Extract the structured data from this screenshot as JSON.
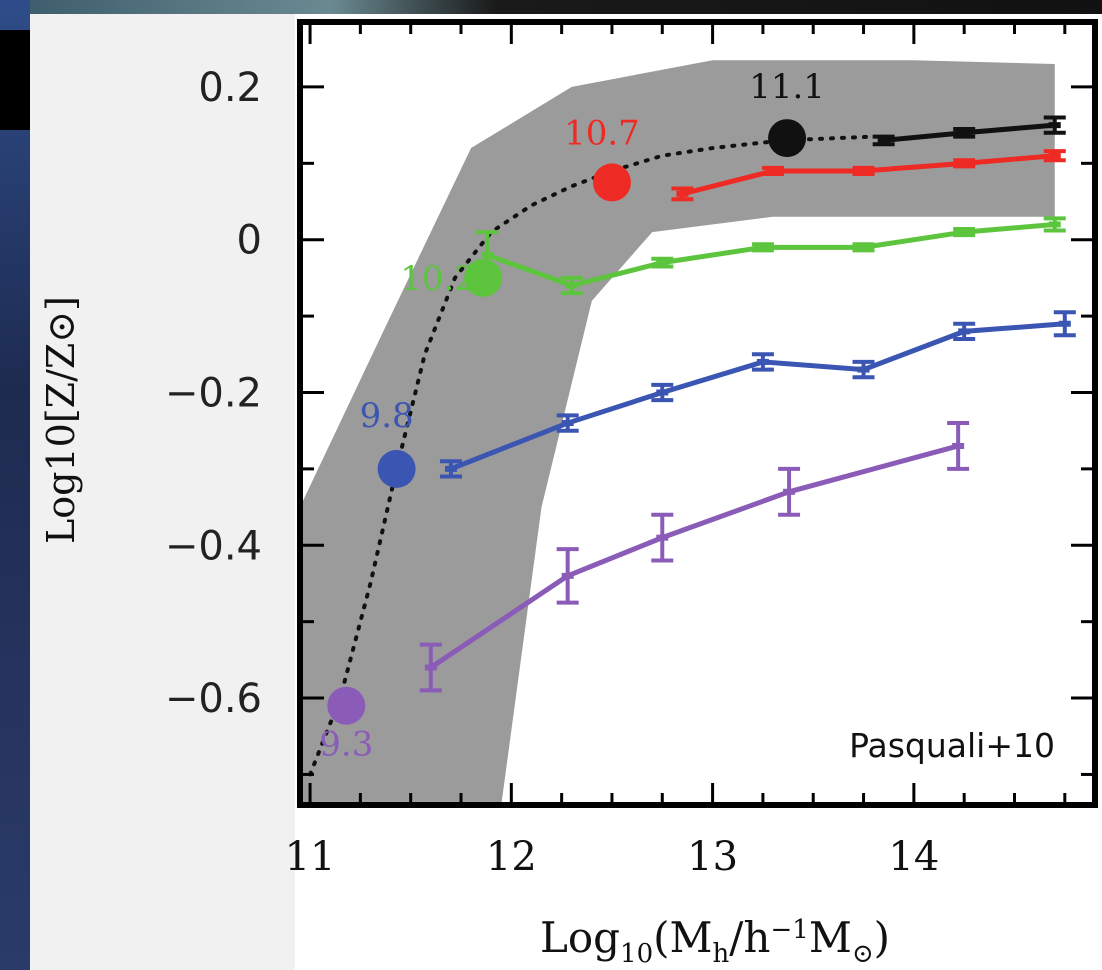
{
  "chart_data": {
    "type": "line",
    "xlabel_parts": {
      "pre": "Log",
      "sub": "10",
      "mid": "(M",
      "sub2": "h",
      "mid2": "/h",
      "sup": "−1",
      "mid3": "M",
      "sun": "⊙",
      "post": ")"
    },
    "ylabel": "Log10[Z/Z⊙]",
    "x_ticks": [
      "11",
      "12",
      "13",
      "14"
    ],
    "y_ticks": [
      "0.2",
      "0",
      "−0.2",
      "−0.4",
      "−0.6"
    ],
    "xlim": [
      10.95,
      14.9
    ],
    "ylim": [
      -0.74,
      0.285
    ],
    "annotation": "Pasquali+10",
    "shaded_band": {
      "upper": [
        [
          10.95,
          -0.35
        ],
        [
          11.4,
          -0.1
        ],
        [
          11.8,
          0.12
        ],
        [
          12.3,
          0.2
        ],
        [
          13.0,
          0.235
        ],
        [
          14.0,
          0.235
        ],
        [
          14.7,
          0.23
        ]
      ],
      "lower": [
        [
          11.95,
          -0.74
        ],
        [
          12.15,
          -0.35
        ],
        [
          12.4,
          -0.08
        ],
        [
          12.7,
          0.01
        ],
        [
          13.3,
          0.03
        ],
        [
          14.7,
          0.03
        ]
      ]
    },
    "dotted_curve": [
      [
        11.0,
        -0.7
      ],
      [
        11.15,
        -0.6
      ],
      [
        11.3,
        -0.45
      ],
      [
        11.43,
        -0.3
      ],
      [
        11.57,
        -0.15
      ],
      [
        11.72,
        -0.05
      ],
      [
        11.9,
        0.01
      ],
      [
        12.1,
        0.045
      ],
      [
        12.3,
        0.07
      ],
      [
        12.5,
        0.09
      ],
      [
        12.75,
        0.11
      ],
      [
        13.0,
        0.12
      ],
      [
        13.35,
        0.13
      ],
      [
        13.8,
        0.135
      ]
    ],
    "markers": [
      {
        "label": "9.3",
        "x": 11.18,
        "y": -0.61,
        "color": "#8a5cb8"
      },
      {
        "label": "9.8",
        "x": 11.43,
        "y": -0.3,
        "color": "#3b56b2"
      },
      {
        "label": "10.2",
        "x": 11.86,
        "y": -0.05,
        "color": "#5cc53d"
      },
      {
        "label": "10.7",
        "x": 12.5,
        "y": 0.075,
        "color": "#ee2a24"
      },
      {
        "label": "11.1",
        "x": 13.37,
        "y": 0.133,
        "color": "#111111"
      }
    ],
    "series": [
      {
        "name": "11.1",
        "color": "#111111",
        "x": [
          13.85,
          14.25,
          14.7
        ],
        "y": [
          0.13,
          0.14,
          0.15
        ],
        "err": [
          0.005,
          0.005,
          0.01
        ]
      },
      {
        "name": "10.7",
        "color": "#ee2a24",
        "x": [
          12.85,
          13.3,
          13.75,
          14.25,
          14.7
        ],
        "y": [
          0.06,
          0.09,
          0.09,
          0.1,
          0.11
        ],
        "err": [
          0.007,
          0.004,
          0.004,
          0.004,
          0.006
        ]
      },
      {
        "name": "10.2",
        "color": "#5cc53d",
        "x": [
          11.88,
          12.3,
          12.75,
          13.25,
          13.75,
          14.25,
          14.7
        ],
        "y": [
          -0.02,
          -0.06,
          -0.03,
          -0.01,
          -0.01,
          0.01,
          0.02
        ],
        "err": [
          0.03,
          0.01,
          0.005,
          0.004,
          0.004,
          0.004,
          0.008
        ]
      },
      {
        "name": "9.8",
        "color": "#3b56b2",
        "x": [
          11.7,
          12.28,
          12.75,
          13.25,
          13.75,
          14.25,
          14.75
        ],
        "y": [
          -0.3,
          -0.24,
          -0.2,
          -0.16,
          -0.17,
          -0.12,
          -0.11
        ],
        "err": [
          0.01,
          0.01,
          0.01,
          0.01,
          0.01,
          0.01,
          0.015
        ]
      },
      {
        "name": "9.3",
        "color": "#8a5cb8",
        "x": [
          11.6,
          12.28,
          12.75,
          13.38,
          14.22
        ],
        "y": [
          -0.56,
          -0.44,
          -0.39,
          -0.33,
          -0.27
        ],
        "err": [
          0.03,
          0.035,
          0.03,
          0.03,
          0.03
        ]
      }
    ]
  }
}
